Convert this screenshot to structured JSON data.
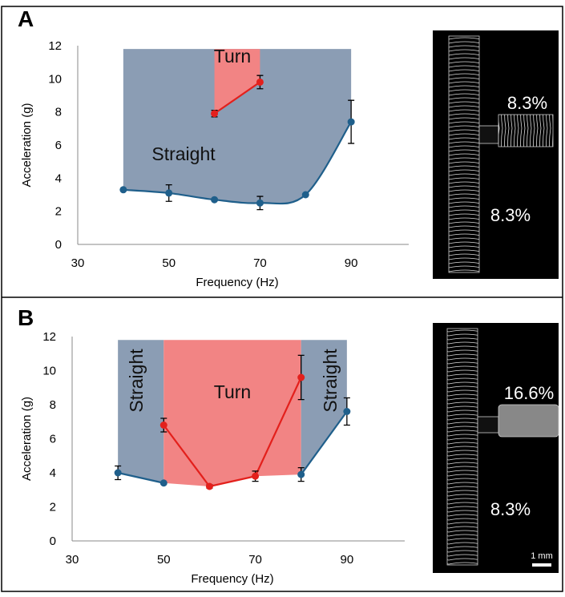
{
  "chart_data": [
    {
      "type": "line",
      "panel_label": "A",
      "x_label": "Frequency (Hz)",
      "y_label": "Acceleration (g)",
      "xlim": [
        30,
        100
      ],
      "ylim": [
        0,
        12
      ],
      "xticks": [
        30,
        50,
        70,
        90
      ],
      "yticks": [
        0,
        2,
        4,
        6,
        8,
        10,
        12
      ],
      "smooth": true,
      "regions": [
        {
          "name": "Straight",
          "color": "#8b9db4",
          "x": [
            40,
            90
          ],
          "top": 11.8,
          "floor_series": [
            0
          ]
        },
        {
          "name": "Turn",
          "color": "#f28484",
          "x": [
            60,
            70
          ],
          "top": 11.8,
          "floor_series": [
            1
          ]
        }
      ],
      "series": [
        {
          "name": "Straight",
          "color": "#1f5f8b",
          "x": [
            40,
            50,
            60,
            70,
            80,
            90
          ],
          "values": [
            3.3,
            3.1,
            2.7,
            2.5,
            3.0,
            7.4
          ],
          "errors": [
            null,
            0.5,
            null,
            0.4,
            null,
            1.3
          ]
        },
        {
          "name": "Turn",
          "color": "#e3201c",
          "x": [
            60,
            70
          ],
          "values": [
            7.9,
            9.8
          ],
          "errors": [
            0.2,
            0.4
          ]
        }
      ]
    },
    {
      "type": "line",
      "panel_label": "B",
      "x_label": "Frequency (Hz)",
      "y_label": "Acceleration (g)",
      "xlim": [
        30,
        100
      ],
      "ylim": [
        0,
        12
      ],
      "xticks": [
        30,
        50,
        70,
        90
      ],
      "yticks": [
        0,
        2,
        4,
        6,
        8,
        10,
        12
      ],
      "smooth": false,
      "regions": [
        {
          "name": "Straight",
          "color": "#8b9db4",
          "x": [
            40,
            50
          ],
          "top": 11.8,
          "floor_series": [
            0
          ]
        },
        {
          "name": "Turn",
          "color": "#f28484",
          "x": [
            50,
            80
          ],
          "top": 11.8,
          "floor_series": [
            0,
            1
          ]
        },
        {
          "name": "Straight",
          "color": "#8b9db4",
          "x": [
            80,
            90
          ],
          "top": 11.8,
          "floor_series": [
            0
          ]
        }
      ],
      "series": [
        {
          "name": "Straight",
          "color": "#1f5f8b",
          "x": [
            40,
            50,
            60,
            70,
            80,
            90
          ],
          "values": [
            4.0,
            3.4,
            null,
            null,
            3.9,
            7.6
          ],
          "errors": [
            0.4,
            null,
            null,
            null,
            0.4,
            0.8
          ]
        },
        {
          "name": "Turn",
          "color": "#e3201c",
          "x": [
            50,
            60,
            70,
            80
          ],
          "values": [
            6.8,
            3.2,
            3.8,
            9.6
          ],
          "errors": [
            0.4,
            0.1,
            0.3,
            1.3
          ]
        }
      ]
    }
  ],
  "images": [
    {
      "side_label": "8.3%",
      "main_label": "8.3%"
    },
    {
      "side_label": "16.6%",
      "main_label": "8.3%",
      "scale_bar": "1 mm"
    }
  ]
}
